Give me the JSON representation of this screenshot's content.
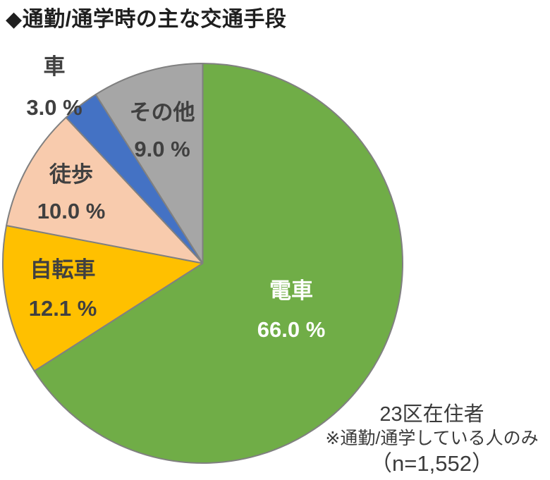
{
  "title": "◆通勤/通学時の主な交通手段",
  "chart_data": {
    "type": "pie",
    "title": "通勤/通学時の主な交通手段",
    "start_angle_deg": 0,
    "direction": "clockwise",
    "outline_color": "#808080",
    "slices": [
      {
        "id": "densha",
        "label": "電車",
        "value": 66.0,
        "value_label": "66.0 %",
        "color": "#70AD47",
        "label_color": "#FFFFFF",
        "label_position": "inside"
      },
      {
        "id": "jitensha",
        "label": "自転車",
        "value": 12.1,
        "value_label": "12.1 %",
        "color": "#FFC000",
        "label_color": "#404040",
        "label_position": "inside"
      },
      {
        "id": "toho",
        "label": "徒歩",
        "value": 10.0,
        "value_label": "10.0 %",
        "color": "#F8CBAD",
        "label_color": "#404040",
        "label_position": "inside"
      },
      {
        "id": "kuruma",
        "label": "車",
        "value": 3.0,
        "value_label": "3.0 %",
        "color": "#4472C4",
        "label_color": "#404040",
        "label_position": "outside"
      },
      {
        "id": "sonota",
        "label": "その他",
        "value": 9.0,
        "value_label": "9.0 %",
        "color": "#A6A6A6",
        "label_color": "#404040",
        "label_position": "inside"
      }
    ]
  },
  "annotation": {
    "line1": "23区在住者",
    "line2": "※通勤/通学している人のみ",
    "line3": "（n=1,552）"
  }
}
